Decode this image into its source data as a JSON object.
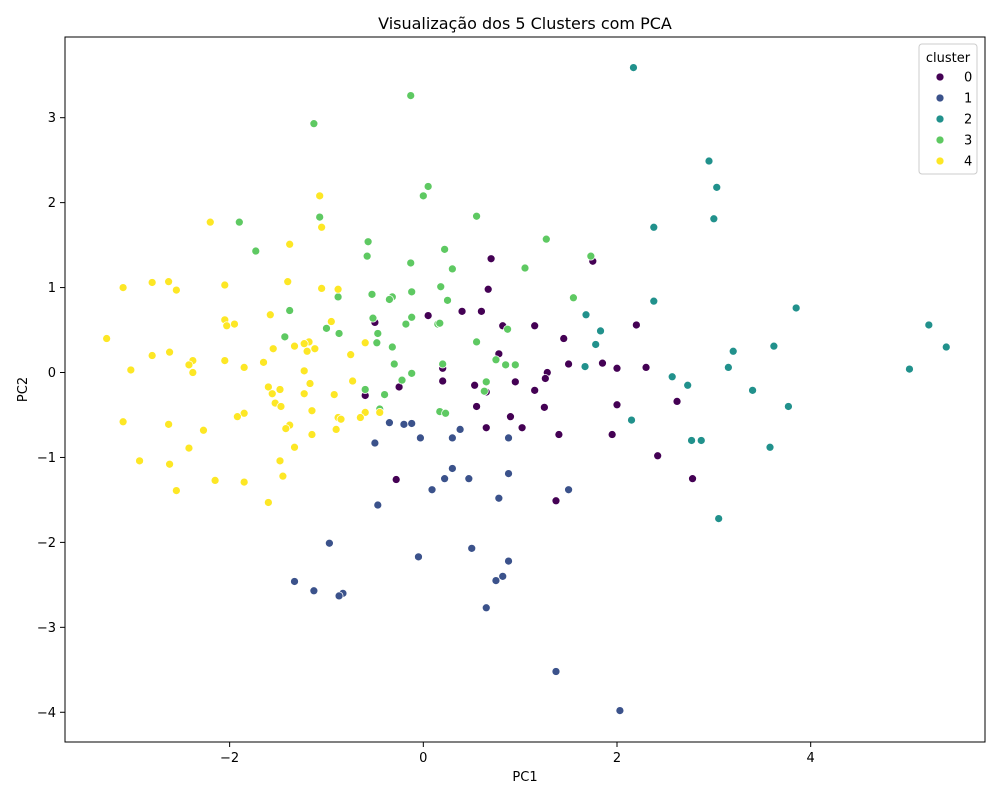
{
  "chart_data": {
    "type": "scatter",
    "title": "Visualização dos 5 Clusters com PCA",
    "xlabel": "PC1",
    "ylabel": "PC2",
    "xlim": [
      -3.7,
      5.8
    ],
    "ylim": [
      -4.35,
      3.95
    ],
    "xticks": [
      -2,
      0,
      2,
      4
    ],
    "yticks": [
      -4,
      -3,
      -2,
      -1,
      0,
      1,
      2,
      3
    ],
    "xtick_labels": [
      "−2",
      "0",
      "2",
      "4"
    ],
    "ytick_labels": [
      "−4",
      "−3",
      "−2",
      "−1",
      "0",
      "1",
      "2",
      "3"
    ],
    "grid": false,
    "legend": {
      "title": "cluster",
      "placement": "top-right",
      "entries": [
        "0",
        "1",
        "2",
        "3",
        "4"
      ]
    },
    "colors": [
      "#440154",
      "#3b528b",
      "#21918c",
      "#5ec962",
      "#fde725"
    ],
    "series": [
      {
        "name": "0",
        "points": [
          [
            -0.5,
            0.59
          ],
          [
            0.05,
            0.67
          ],
          [
            0.4,
            0.72
          ],
          [
            0.6,
            0.72
          ],
          [
            0.7,
            1.34
          ],
          [
            0.67,
            0.98
          ],
          [
            0.78,
            0.22
          ],
          [
            0.82,
            0.55
          ],
          [
            1.15,
            0.55
          ],
          [
            1.45,
            0.4
          ],
          [
            1.75,
            1.31
          ],
          [
            2.2,
            0.56
          ],
          [
            1.85,
            0.11
          ],
          [
            1.5,
            0.1
          ],
          [
            1.28,
            0.0
          ],
          [
            1.26,
            -0.07
          ],
          [
            1.15,
            -0.21
          ],
          [
            0.95,
            -0.11
          ],
          [
            0.65,
            -0.23
          ],
          [
            0.53,
            -0.15
          ],
          [
            0.2,
            -0.1
          ],
          [
            0.55,
            -0.4
          ],
          [
            1.25,
            -0.41
          ],
          [
            0.9,
            -0.52
          ],
          [
            0.65,
            -0.65
          ],
          [
            1.02,
            -0.65
          ],
          [
            1.4,
            -0.73
          ],
          [
            2.0,
            0.05
          ],
          [
            2.3,
            0.06
          ],
          [
            2.0,
            -0.38
          ],
          [
            2.62,
            -0.34
          ],
          [
            1.95,
            -0.73
          ],
          [
            2.42,
            -0.98
          ],
          [
            2.78,
            -1.25
          ],
          [
            1.37,
            -1.51
          ],
          [
            -0.28,
            -1.26
          ],
          [
            -0.25,
            -0.17
          ],
          [
            -0.6,
            -0.27
          ],
          [
            0.2,
            0.05
          ]
        ]
      },
      {
        "name": "1",
        "points": [
          [
            -0.5,
            -0.83
          ],
          [
            -0.35,
            -0.59
          ],
          [
            -0.2,
            -0.61
          ],
          [
            -0.12,
            -0.6
          ],
          [
            -0.03,
            -0.77
          ],
          [
            0.38,
            -0.67
          ],
          [
            0.3,
            -0.77
          ],
          [
            0.88,
            -0.77
          ],
          [
            0.3,
            -1.13
          ],
          [
            0.47,
            -1.25
          ],
          [
            0.22,
            -1.25
          ],
          [
            0.88,
            -1.19
          ],
          [
            0.09,
            -1.38
          ],
          [
            1.5,
            -1.38
          ],
          [
            0.78,
            -1.48
          ],
          [
            -0.47,
            -1.56
          ],
          [
            -0.97,
            -2.01
          ],
          [
            -0.05,
            -2.17
          ],
          [
            0.5,
            -2.07
          ],
          [
            0.88,
            -2.22
          ],
          [
            0.82,
            -2.4
          ],
          [
            0.75,
            -2.45
          ],
          [
            -1.33,
            -2.46
          ],
          [
            -1.13,
            -2.57
          ],
          [
            -0.83,
            -2.6
          ],
          [
            -0.87,
            -2.63
          ],
          [
            0.65,
            -2.77
          ],
          [
            1.37,
            -3.52
          ],
          [
            2.03,
            -3.98
          ]
        ]
      },
      {
        "name": "2",
        "points": [
          [
            2.17,
            3.59
          ],
          [
            2.95,
            2.49
          ],
          [
            3.03,
            2.18
          ],
          [
            3.0,
            1.81
          ],
          [
            2.38,
            1.71
          ],
          [
            2.38,
            0.84
          ],
          [
            3.85,
            0.76
          ],
          [
            1.68,
            0.68
          ],
          [
            1.83,
            0.49
          ],
          [
            1.78,
            0.33
          ],
          [
            3.2,
            0.25
          ],
          [
            3.62,
            0.31
          ],
          [
            5.22,
            0.56
          ],
          [
            5.4,
            0.3
          ],
          [
            5.02,
            0.04
          ],
          [
            3.15,
            0.06
          ],
          [
            1.67,
            0.07
          ],
          [
            2.57,
            -0.05
          ],
          [
            2.73,
            -0.15
          ],
          [
            3.4,
            -0.21
          ],
          [
            3.77,
            -0.4
          ],
          [
            2.15,
            -0.56
          ],
          [
            2.77,
            -0.8
          ],
          [
            2.87,
            -0.8
          ],
          [
            3.58,
            -0.88
          ],
          [
            3.05,
            -1.72
          ]
        ]
      },
      {
        "name": "3",
        "points": [
          [
            -0.13,
            3.26
          ],
          [
            -1.13,
            2.93
          ],
          [
            0.05,
            2.19
          ],
          [
            0.0,
            2.08
          ],
          [
            -1.07,
            1.83
          ],
          [
            -1.9,
            1.77
          ],
          [
            0.55,
            1.84
          ],
          [
            1.27,
            1.57
          ],
          [
            -0.57,
            1.54
          ],
          [
            0.22,
            1.45
          ],
          [
            -1.73,
            1.43
          ],
          [
            -0.58,
            1.37
          ],
          [
            1.73,
            1.37
          ],
          [
            -0.13,
            1.29
          ],
          [
            0.3,
            1.22
          ],
          [
            1.05,
            1.23
          ],
          [
            0.18,
            1.01
          ],
          [
            -0.53,
            0.92
          ],
          [
            -0.12,
            0.95
          ],
          [
            1.55,
            0.88
          ],
          [
            -0.32,
            0.89
          ],
          [
            -0.88,
            0.89
          ],
          [
            -0.35,
            0.86
          ],
          [
            0.25,
            0.85
          ],
          [
            -1.38,
            0.73
          ],
          [
            -0.52,
            0.64
          ],
          [
            -0.12,
            0.65
          ],
          [
            0.15,
            0.57
          ],
          [
            0.17,
            0.58
          ],
          [
            -0.18,
            0.57
          ],
          [
            -1.0,
            0.52
          ],
          [
            -0.87,
            0.46
          ],
          [
            -0.47,
            0.46
          ],
          [
            -1.43,
            0.42
          ],
          [
            -0.48,
            0.35
          ],
          [
            0.55,
            0.36
          ],
          [
            0.87,
            0.51
          ],
          [
            -0.32,
            0.3
          ],
          [
            0.75,
            0.15
          ],
          [
            0.95,
            0.09
          ],
          [
            0.2,
            0.1
          ],
          [
            -0.3,
            0.1
          ],
          [
            -0.12,
            -0.01
          ],
          [
            -0.22,
            -0.09
          ],
          [
            0.65,
            -0.11
          ],
          [
            -0.6,
            -0.2
          ],
          [
            -0.4,
            -0.26
          ],
          [
            0.17,
            -0.46
          ],
          [
            0.23,
            -0.48
          ],
          [
            -0.45,
            -0.43
          ],
          [
            0.85,
            0.09
          ],
          [
            0.63,
            -0.22
          ]
        ]
      },
      {
        "name": "4",
        "points": [
          [
            -1.07,
            2.08
          ],
          [
            -2.2,
            1.77
          ],
          [
            -1.05,
            1.71
          ],
          [
            -1.38,
            1.51
          ],
          [
            -2.8,
            1.06
          ],
          [
            -2.63,
            1.07
          ],
          [
            -1.4,
            1.07
          ],
          [
            -3.1,
            1.0
          ],
          [
            -2.55,
            0.97
          ],
          [
            -2.05,
            1.03
          ],
          [
            -1.05,
            0.99
          ],
          [
            -0.88,
            0.98
          ],
          [
            -1.58,
            0.68
          ],
          [
            -0.95,
            0.6
          ],
          [
            -2.05,
            0.62
          ],
          [
            -1.95,
            0.57
          ],
          [
            -2.03,
            0.55
          ],
          [
            -3.27,
            0.4
          ],
          [
            -1.18,
            0.36
          ],
          [
            -1.23,
            0.34
          ],
          [
            -1.33,
            0.31
          ],
          [
            -1.12,
            0.28
          ],
          [
            -1.55,
            0.28
          ],
          [
            -1.2,
            0.25
          ],
          [
            -2.62,
            0.24
          ],
          [
            -0.75,
            0.21
          ],
          [
            -2.8,
            0.2
          ],
          [
            -2.05,
            0.14
          ],
          [
            -2.38,
            0.14
          ],
          [
            -1.65,
            0.12
          ],
          [
            -2.42,
            0.09
          ],
          [
            -1.85,
            0.06
          ],
          [
            -3.02,
            0.03
          ],
          [
            -1.23,
            0.02
          ],
          [
            -2.38,
            0.0
          ],
          [
            -0.73,
            -0.1
          ],
          [
            -1.17,
            -0.13
          ],
          [
            -1.6,
            -0.17
          ],
          [
            -1.48,
            -0.2
          ],
          [
            -1.56,
            -0.25
          ],
          [
            -1.23,
            -0.25
          ],
          [
            -0.92,
            -0.26
          ],
          [
            -1.53,
            -0.36
          ],
          [
            -1.47,
            -0.4
          ],
          [
            -0.6,
            -0.47
          ],
          [
            -1.85,
            -0.48
          ],
          [
            -1.15,
            -0.45
          ],
          [
            -0.45,
            -0.47
          ],
          [
            -1.92,
            -0.52
          ],
          [
            -0.88,
            -0.53
          ],
          [
            -0.85,
            -0.55
          ],
          [
            -0.65,
            -0.53
          ],
          [
            -3.1,
            -0.58
          ],
          [
            -2.63,
            -0.61
          ],
          [
            -1.38,
            -0.62
          ],
          [
            -1.42,
            -0.66
          ],
          [
            -2.27,
            -0.68
          ],
          [
            -0.9,
            -0.67
          ],
          [
            -1.15,
            -0.73
          ],
          [
            -1.33,
            -0.88
          ],
          [
            -2.42,
            -0.89
          ],
          [
            -2.93,
            -1.04
          ],
          [
            -1.48,
            -1.04
          ],
          [
            -2.62,
            -1.08
          ],
          [
            -1.45,
            -1.22
          ],
          [
            -2.15,
            -1.27
          ],
          [
            -1.85,
            -1.29
          ],
          [
            -2.55,
            -1.39
          ],
          [
            -1.6,
            -1.53
          ],
          [
            -0.6,
            0.35
          ]
        ]
      }
    ]
  }
}
